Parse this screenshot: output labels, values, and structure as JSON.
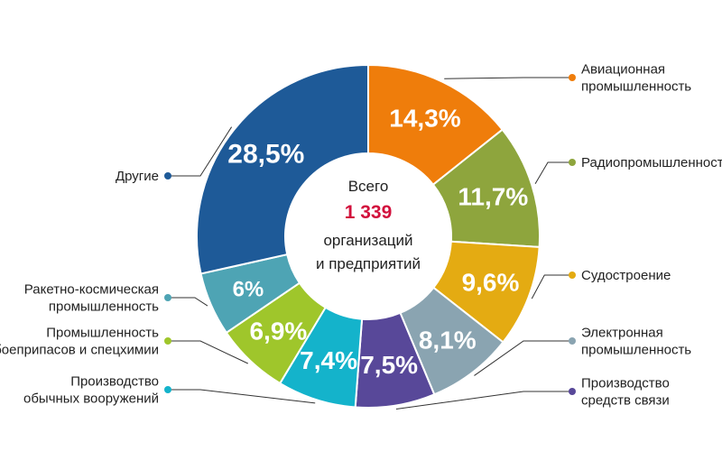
{
  "chart_data": {
    "type": "pie",
    "style": "donut",
    "center": {
      "line1": "Всего",
      "total": "1 339",
      "line2": "организаций",
      "line3": "и предприятий",
      "total_color": "#d2103c"
    },
    "slices": [
      {
        "label": [
          "Авиационная",
          "промышленность"
        ],
        "value": 14.3,
        "value_label": "14,3%",
        "color": "#ef7d0b",
        "legend_side": "right"
      },
      {
        "label": [
          "Радиопромышленность"
        ],
        "value": 11.7,
        "value_label": "11,7%",
        "color": "#8ea53d",
        "legend_side": "right"
      },
      {
        "label": [
          "Судостроение"
        ],
        "value": 9.6,
        "value_label": "9,6%",
        "color": "#e4ab12",
        "legend_side": "right"
      },
      {
        "label": [
          "Электронная",
          "промышленность"
        ],
        "value": 8.1,
        "value_label": "8,1%",
        "color": "#8aa4b1",
        "legend_side": "right"
      },
      {
        "label": [
          "Производство",
          "средств связи"
        ],
        "value": 7.5,
        "value_label": "7,5%",
        "color": "#584899",
        "legend_side": "right"
      },
      {
        "label": [
          "Производство",
          "обычных вооружений"
        ],
        "value": 7.4,
        "value_label": "7,4%",
        "color": "#14b3cb",
        "legend_side": "left"
      },
      {
        "label": [
          "Промышленность",
          "боеприпасов и спецхимии"
        ],
        "value": 6.9,
        "value_label": "6,9%",
        "color": "#9fc62b",
        "legend_side": "left"
      },
      {
        "label": [
          "Ракетно-космическая",
          "промышленность"
        ],
        "value": 6,
        "value_label": "6%",
        "color": "#4ea4b4",
        "legend_side": "left"
      },
      {
        "label": [
          "Другие"
        ],
        "value": 28.5,
        "value_label": "28,5%",
        "color": "#1e5a98",
        "legend_side": "left"
      }
    ]
  }
}
